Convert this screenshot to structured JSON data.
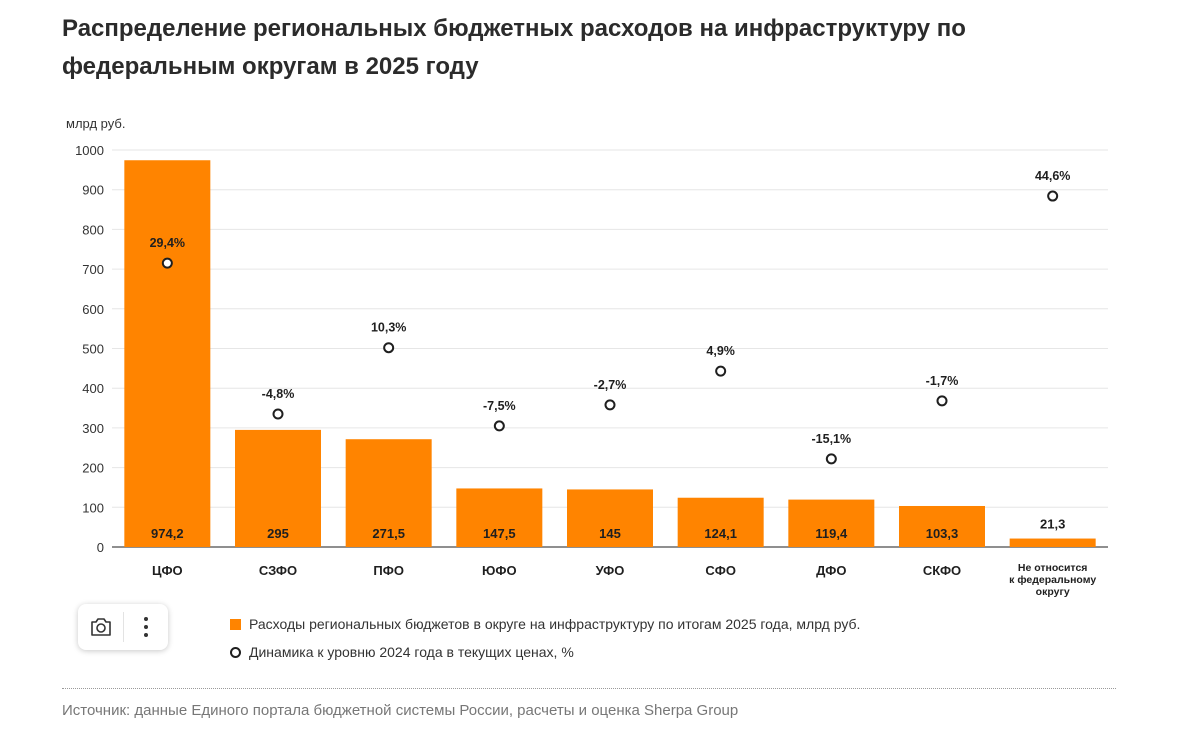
{
  "title": "Распределение региональных бюджетных расходов на инфраструктуру по федеральным округам в 2025 году",
  "chart_data": {
    "type": "bar",
    "title": "Распределение региональных бюджетных расходов на инфраструктуру по федеральным округам в 2025 году",
    "ylabel": "млрд руб.",
    "xlabel": "",
    "ylim": [
      0,
      1000
    ],
    "yticks": [
      0,
      100,
      200,
      300,
      400,
      500,
      600,
      700,
      800,
      900,
      1000
    ],
    "grid": true,
    "categories": [
      [
        "ЦФО"
      ],
      [
        "СЗФО"
      ],
      [
        "ПФО"
      ],
      [
        "ЮФО"
      ],
      [
        "УФО"
      ],
      [
        "СФО"
      ],
      [
        "ДФО"
      ],
      [
        "СКФО"
      ],
      [
        "Не относится",
        "к федеральному",
        "округу"
      ]
    ],
    "series": [
      {
        "name": "Расходы региональных бюджетов в округе на инфраструктуру по итогам 2025 года, млрд руб.",
        "type": "bar",
        "color": "#ff8400",
        "values": [
          974.2,
          295,
          271.5,
          147.5,
          145,
          124.1,
          119.4,
          103.3,
          21.3
        ],
        "labels": [
          "974,2",
          "295",
          "271,5",
          "147,5",
          "145",
          "124,1",
          "119,4",
          "103,3",
          "21,3"
        ]
      },
      {
        "name": "Динамика к уровню 2024 года в текущих ценах, %",
        "type": "scatter",
        "color": "#1f1f1f",
        "values": [
          29.4,
          -4.8,
          10.3,
          -7.5,
          -2.7,
          4.9,
          -15.1,
          -1.7,
          44.6
        ],
        "labels": [
          "29,4%",
          "-4,8%",
          "10,3%",
          "-7,5%",
          "-2,7%",
          "4,9%",
          "-15,1%",
          "-1,7%",
          "44,6%"
        ],
        "display_positions_on_left_axis": [
          715,
          335,
          502,
          305,
          358,
          443,
          222,
          368,
          884
        ]
      }
    ]
  },
  "toolbar": {
    "camera_icon": "camera-icon",
    "menu_icon": "more-vertical-icon"
  },
  "legend": {
    "bar_label": "Расходы региональных бюджетов в округе на инфраструктуру по итогам 2025 года, млрд руб.",
    "dot_label": "Динамика к уровню 2024 года в текущих ценах, %"
  },
  "source": "Источник: данные Единого портала бюджетной системы России, расчеты и оценка Sherpa Group",
  "colors": {
    "bar": "#ff8400",
    "grid": "#e6e6e6",
    "text": "#1f1f1f"
  }
}
